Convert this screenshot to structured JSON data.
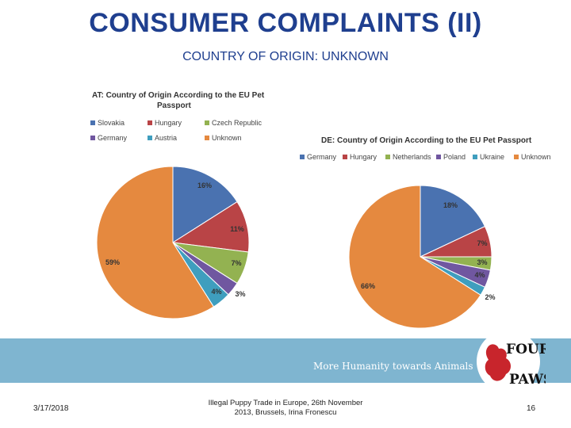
{
  "slide": {
    "title": "CONSUMER COMPLAINTS (II)",
    "subtitle": "COUNTRY OF ORIGIN: UNKNOWN",
    "tagline": "More Humanity towards Animals",
    "logo": {
      "line1": "FOUR",
      "line2": "PAWS"
    },
    "footer": {
      "date": "3/17/2018",
      "center_line1": "Illegal Puppy Trade in Europe, 26th November",
      "center_line2": "2013, Brussels, Irina Fronescu",
      "page": "16"
    },
    "colors": {
      "accent": "#1f3f8f",
      "band": "#7fb5d0"
    }
  },
  "chart_data": [
    {
      "type": "pie",
      "title_line1": "AT: Country of Origin According to the EU Pet",
      "title_line2": "Passport",
      "legend": "top",
      "slices": [
        {
          "label": "Slovakia",
          "value": 16,
          "display": "16%",
          "color": "#4a72b0"
        },
        {
          "label": "Hungary",
          "value": 11,
          "display": "11%",
          "color": "#b94446"
        },
        {
          "label": "Czech Republic",
          "value": 7,
          "display": "7%",
          "color": "#93b251"
        },
        {
          "label": "Germany",
          "value": 3,
          "display": "3%",
          "color": "#7057a0"
        },
        {
          "label": "Austria",
          "value": 4,
          "display": "4%",
          "color": "#3f9ebe"
        },
        {
          "label": "Unknown",
          "value": 59,
          "display": "59%",
          "color": "#e5893f"
        }
      ]
    },
    {
      "type": "pie",
      "title_line1": "DE: Country of Origin According to the EU Pet Passport",
      "legend": "top",
      "slices": [
        {
          "label": "Germany",
          "value": 18,
          "display": "18%",
          "color": "#4a72b0"
        },
        {
          "label": "Hungary",
          "value": 7,
          "display": "7%",
          "color": "#b94446"
        },
        {
          "label": "Netherlands",
          "value": 3,
          "display": "3%",
          "color": "#93b251"
        },
        {
          "label": "Poland",
          "value": 4,
          "display": "4%",
          "color": "#7057a0"
        },
        {
          "label": "Ukraine",
          "value": 2,
          "display": "2%",
          "color": "#3f9ebe"
        },
        {
          "label": "Unknown",
          "value": 66,
          "display": "66%",
          "color": "#e5893f"
        }
      ]
    }
  ]
}
